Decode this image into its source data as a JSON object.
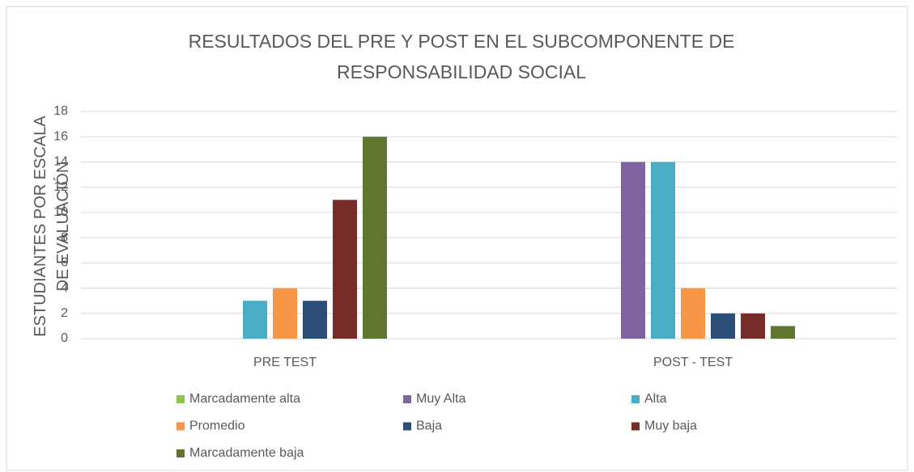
{
  "chart_data": {
    "type": "bar",
    "title": "RESULTADOS DEL PRE Y POST EN EL SUBCOMPONENTE DE RESPONSABILIDAD SOCIAL",
    "y_label": "ESTUDIANTES POR ESCALA DE EVALUACIÓN",
    "categories": [
      "PRE TEST",
      "POST - TEST"
    ],
    "series": [
      {
        "name": "Marcadamente alta",
        "color": "#8fc44f",
        "values": [
          0,
          0
        ]
      },
      {
        "name": "Muy Alta",
        "color": "#8064a2",
        "values": [
          0,
          14
        ]
      },
      {
        "name": "Alta",
        "color": "#4bacc6",
        "values": [
          3,
          14
        ]
      },
      {
        "name": "Promedio",
        "color": "#f79646",
        "values": [
          4,
          4
        ]
      },
      {
        "name": "Baja",
        "color": "#2c4d75",
        "values": [
          3,
          2
        ]
      },
      {
        "name": "Muy baja",
        "color": "#772c2a",
        "values": [
          11,
          2
        ]
      },
      {
        "name": "Marcadamente baja",
        "color": "#5f7530",
        "values": [
          16,
          1
        ]
      }
    ],
    "ylim": [
      0,
      18
    ],
    "yticks": [
      0,
      2,
      4,
      6,
      8,
      10,
      12,
      14,
      16,
      18
    ],
    "grid": true,
    "legend": "bottom"
  }
}
